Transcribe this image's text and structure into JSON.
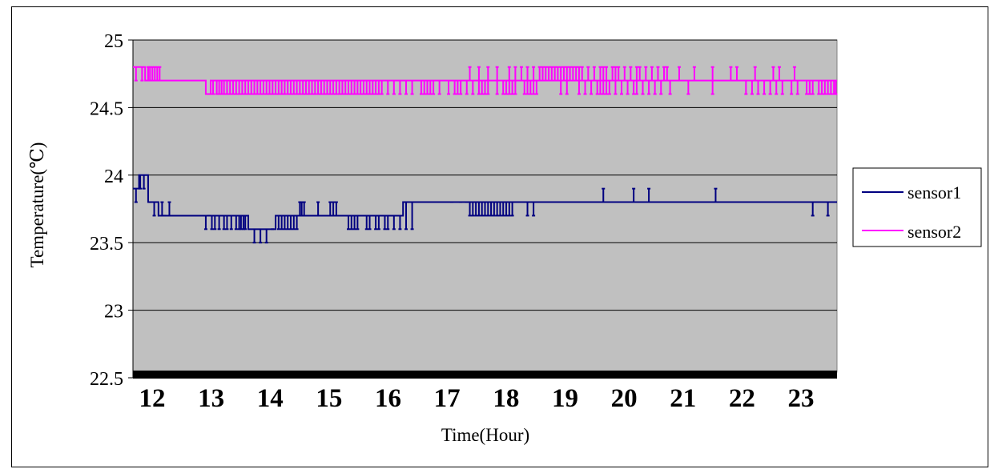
{
  "chart_data": {
    "type": "line",
    "title": "",
    "xlabel": "Time(Hour)",
    "ylabel": "Temperature(℃)",
    "ylim": [
      22.5,
      25
    ],
    "yticks": [
      "25",
      "24.5",
      "24",
      "23.5",
      "23",
      "22.5"
    ],
    "ytick_values": [
      25,
      24.5,
      24,
      23.5,
      23,
      22.5
    ],
    "xticks": [
      "12",
      "13",
      "14",
      "15",
      "16",
      "17",
      "18",
      "19",
      "20",
      "21",
      "22",
      "23"
    ],
    "xlim": [
      12,
      23.6
    ],
    "grid": "horizontal",
    "legend_position": "right",
    "plot_background": "#c0c0c0",
    "series": [
      {
        "name": "sensor1",
        "color": "#000080",
        "base": [
          [
            12.0,
            23.9
          ],
          [
            12.1,
            24.0
          ],
          [
            12.25,
            23.8
          ],
          [
            12.42,
            23.7
          ],
          [
            13.9,
            23.6
          ],
          [
            14.35,
            23.7
          ],
          [
            16.45,
            23.8
          ],
          [
            23.6,
            23.8
          ]
        ],
        "spikes": [
          [
            12.05,
            23.8
          ],
          [
            12.12,
            23.9
          ],
          [
            12.18,
            23.9
          ],
          [
            12.28,
            23.8
          ],
          [
            12.35,
            23.7
          ],
          [
            12.48,
            23.8
          ],
          [
            12.52,
            23.7
          ],
          [
            12.6,
            23.8
          ],
          [
            13.2,
            23.6
          ],
          [
            13.25,
            23.7
          ],
          [
            13.3,
            23.6
          ],
          [
            13.35,
            23.6
          ],
          [
            13.42,
            23.6
          ],
          [
            13.5,
            23.6
          ],
          [
            13.55,
            23.6
          ],
          [
            13.62,
            23.6
          ],
          [
            13.7,
            23.6
          ],
          [
            13.75,
            23.6
          ],
          [
            13.78,
            23.6
          ],
          [
            13.82,
            23.6
          ],
          [
            13.85,
            23.6
          ],
          [
            14.0,
            23.5
          ],
          [
            14.1,
            23.5
          ],
          [
            14.2,
            23.5
          ],
          [
            14.3,
            23.6
          ],
          [
            14.4,
            23.6
          ],
          [
            14.45,
            23.6
          ],
          [
            14.5,
            23.6
          ],
          [
            14.55,
            23.6
          ],
          [
            14.6,
            23.6
          ],
          [
            14.65,
            23.6
          ],
          [
            14.7,
            23.6
          ],
          [
            14.75,
            23.8
          ],
          [
            14.78,
            23.8
          ],
          [
            14.82,
            23.8
          ],
          [
            15.05,
            23.8
          ],
          [
            15.25,
            23.8
          ],
          [
            15.3,
            23.8
          ],
          [
            15.35,
            23.8
          ],
          [
            15.55,
            23.6
          ],
          [
            15.6,
            23.6
          ],
          [
            15.65,
            23.6
          ],
          [
            15.7,
            23.6
          ],
          [
            15.85,
            23.6
          ],
          [
            15.9,
            23.6
          ],
          [
            16.0,
            23.6
          ],
          [
            16.05,
            23.6
          ],
          [
            16.15,
            23.6
          ],
          [
            16.2,
            23.6
          ],
          [
            16.3,
            23.6
          ],
          [
            16.4,
            23.6
          ],
          [
            16.5,
            23.6
          ],
          [
            16.6,
            23.6
          ],
          [
            17.25,
            23.8
          ],
          [
            17.4,
            23.8
          ],
          [
            17.5,
            23.8
          ],
          [
            17.55,
            23.7
          ],
          [
            17.6,
            23.7
          ],
          [
            17.65,
            23.7
          ],
          [
            17.7,
            23.7
          ],
          [
            17.75,
            23.7
          ],
          [
            17.8,
            23.7
          ],
          [
            17.85,
            23.7
          ],
          [
            17.9,
            23.7
          ],
          [
            17.95,
            23.7
          ],
          [
            18.0,
            23.7
          ],
          [
            18.05,
            23.7
          ],
          [
            18.1,
            23.7
          ],
          [
            18.15,
            23.7
          ],
          [
            18.2,
            23.7
          ],
          [
            18.25,
            23.7
          ],
          [
            18.5,
            23.7
          ],
          [
            18.6,
            23.7
          ],
          [
            19.75,
            23.9
          ],
          [
            20.25,
            23.9
          ],
          [
            20.5,
            23.9
          ],
          [
            21.6,
            23.9
          ],
          [
            23.2,
            23.7
          ],
          [
            23.45,
            23.7
          ]
        ]
      },
      {
        "name": "sensor2",
        "color": "#ff00ff",
        "base": [
          [
            12.0,
            24.8
          ],
          [
            12.12,
            24.8
          ],
          [
            12.2,
            24.7
          ],
          [
            13.2,
            24.6
          ],
          [
            13.28,
            24.7
          ],
          [
            23.6,
            24.7
          ]
        ],
        "spikes": [
          [
            12.05,
            24.7
          ],
          [
            12.15,
            24.7
          ],
          [
            12.25,
            24.8
          ],
          [
            12.28,
            24.8
          ],
          [
            12.32,
            24.8
          ],
          [
            12.36,
            24.8
          ],
          [
            12.4,
            24.8
          ],
          [
            12.44,
            24.8
          ],
          [
            13.22,
            24.6
          ],
          [
            13.26,
            24.6
          ],
          [
            13.32,
            24.6
          ],
          [
            13.38,
            24.6
          ],
          [
            13.42,
            24.6
          ],
          [
            13.46,
            24.6
          ],
          [
            13.5,
            24.6
          ],
          [
            13.55,
            24.6
          ],
          [
            13.6,
            24.6
          ],
          [
            13.65,
            24.6
          ],
          [
            13.7,
            24.6
          ],
          [
            13.75,
            24.6
          ],
          [
            13.8,
            24.6
          ],
          [
            13.85,
            24.6
          ],
          [
            13.9,
            24.6
          ],
          [
            13.95,
            24.6
          ],
          [
            14.0,
            24.6
          ],
          [
            14.05,
            24.6
          ],
          [
            14.1,
            24.6
          ],
          [
            14.15,
            24.6
          ],
          [
            14.2,
            24.6
          ],
          [
            14.25,
            24.6
          ],
          [
            14.3,
            24.6
          ],
          [
            14.35,
            24.6
          ],
          [
            14.4,
            24.6
          ],
          [
            14.45,
            24.6
          ],
          [
            14.5,
            24.6
          ],
          [
            14.55,
            24.6
          ],
          [
            14.6,
            24.6
          ],
          [
            14.65,
            24.6
          ],
          [
            14.7,
            24.6
          ],
          [
            14.75,
            24.6
          ],
          [
            14.8,
            24.6
          ],
          [
            14.85,
            24.6
          ],
          [
            14.9,
            24.6
          ],
          [
            14.95,
            24.6
          ],
          [
            15.0,
            24.6
          ],
          [
            15.05,
            24.6
          ],
          [
            15.1,
            24.6
          ],
          [
            15.15,
            24.6
          ],
          [
            15.2,
            24.6
          ],
          [
            15.25,
            24.6
          ],
          [
            15.3,
            24.6
          ],
          [
            15.35,
            24.6
          ],
          [
            15.4,
            24.6
          ],
          [
            15.45,
            24.6
          ],
          [
            15.5,
            24.6
          ],
          [
            15.55,
            24.6
          ],
          [
            15.6,
            24.6
          ],
          [
            15.65,
            24.6
          ],
          [
            15.7,
            24.6
          ],
          [
            15.75,
            24.6
          ],
          [
            15.8,
            24.6
          ],
          [
            15.85,
            24.6
          ],
          [
            15.9,
            24.6
          ],
          [
            15.95,
            24.6
          ],
          [
            16.0,
            24.6
          ],
          [
            16.05,
            24.6
          ],
          [
            16.1,
            24.6
          ],
          [
            16.2,
            24.6
          ],
          [
            16.3,
            24.6
          ],
          [
            16.4,
            24.6
          ],
          [
            16.5,
            24.6
          ],
          [
            16.6,
            24.6
          ],
          [
            16.75,
            24.6
          ],
          [
            16.8,
            24.6
          ],
          [
            16.85,
            24.6
          ],
          [
            16.9,
            24.6
          ],
          [
            16.95,
            24.6
          ],
          [
            17.05,
            24.6
          ],
          [
            17.2,
            24.6
          ],
          [
            17.3,
            24.6
          ],
          [
            17.35,
            24.6
          ],
          [
            17.4,
            24.6
          ],
          [
            17.5,
            24.6
          ],
          [
            17.6,
            24.6
          ],
          [
            17.7,
            24.6
          ],
          [
            17.75,
            24.6
          ],
          [
            17.8,
            24.6
          ],
          [
            17.85,
            24.6
          ],
          [
            18.0,
            24.6
          ],
          [
            18.1,
            24.6
          ],
          [
            18.15,
            24.6
          ],
          [
            18.2,
            24.6
          ],
          [
            18.25,
            24.6
          ],
          [
            18.3,
            24.6
          ],
          [
            18.45,
            24.6
          ],
          [
            18.5,
            24.6
          ],
          [
            18.55,
            24.6
          ],
          [
            18.6,
            24.6
          ],
          [
            18.65,
            24.6
          ],
          [
            19.05,
            24.6
          ],
          [
            19.15,
            24.6
          ],
          [
            19.35,
            24.6
          ],
          [
            19.45,
            24.6
          ],
          [
            19.55,
            24.6
          ],
          [
            19.65,
            24.6
          ],
          [
            19.7,
            24.6
          ],
          [
            19.75,
            24.6
          ],
          [
            19.8,
            24.6
          ],
          [
            19.85,
            24.6
          ],
          [
            19.95,
            24.6
          ],
          [
            20.05,
            24.6
          ],
          [
            20.15,
            24.6
          ],
          [
            20.25,
            24.6
          ],
          [
            20.3,
            24.6
          ],
          [
            20.4,
            24.6
          ],
          [
            20.5,
            24.6
          ],
          [
            20.6,
            24.6
          ],
          [
            20.7,
            24.6
          ],
          [
            20.85,
            24.6
          ],
          [
            21.15,
            24.6
          ],
          [
            21.55,
            24.6
          ],
          [
            22.1,
            24.6
          ],
          [
            22.2,
            24.6
          ],
          [
            22.3,
            24.6
          ],
          [
            22.4,
            24.6
          ],
          [
            22.5,
            24.6
          ],
          [
            22.6,
            24.6
          ],
          [
            22.7,
            24.6
          ],
          [
            22.85,
            24.6
          ],
          [
            22.95,
            24.6
          ],
          [
            23.1,
            24.6
          ],
          [
            23.15,
            24.6
          ],
          [
            23.2,
            24.6
          ],
          [
            23.3,
            24.6
          ],
          [
            23.35,
            24.6
          ],
          [
            23.4,
            24.6
          ],
          [
            23.45,
            24.6
          ],
          [
            23.5,
            24.6
          ],
          [
            23.55,
            24.6
          ],
          [
            23.58,
            24.6
          ],
          [
            17.55,
            24.8
          ],
          [
            17.7,
            24.8
          ],
          [
            17.85,
            24.8
          ],
          [
            18.0,
            24.8
          ],
          [
            18.2,
            24.8
          ],
          [
            18.3,
            24.8
          ],
          [
            18.4,
            24.8
          ],
          [
            18.5,
            24.8
          ],
          [
            18.6,
            24.8
          ],
          [
            18.7,
            24.8
          ],
          [
            18.75,
            24.8
          ],
          [
            18.8,
            24.8
          ],
          [
            18.85,
            24.8
          ],
          [
            18.9,
            24.8
          ],
          [
            18.95,
            24.8
          ],
          [
            19.0,
            24.8
          ],
          [
            19.05,
            24.8
          ],
          [
            19.1,
            24.8
          ],
          [
            19.15,
            24.8
          ],
          [
            19.2,
            24.8
          ],
          [
            19.25,
            24.8
          ],
          [
            19.3,
            24.8
          ],
          [
            19.35,
            24.8
          ],
          [
            19.4,
            24.8
          ],
          [
            19.5,
            24.8
          ],
          [
            19.6,
            24.8
          ],
          [
            19.7,
            24.8
          ],
          [
            19.75,
            24.8
          ],
          [
            19.8,
            24.8
          ],
          [
            19.9,
            24.8
          ],
          [
            19.95,
            24.8
          ],
          [
            20.0,
            24.8
          ],
          [
            20.1,
            24.8
          ],
          [
            20.2,
            24.8
          ],
          [
            20.3,
            24.8
          ],
          [
            20.35,
            24.8
          ],
          [
            20.45,
            24.8
          ],
          [
            20.55,
            24.8
          ],
          [
            20.65,
            24.8
          ],
          [
            20.75,
            24.8
          ],
          [
            20.8,
            24.8
          ],
          [
            21.0,
            24.8
          ],
          [
            21.25,
            24.8
          ],
          [
            21.55,
            24.8
          ],
          [
            21.85,
            24.8
          ],
          [
            21.95,
            24.8
          ],
          [
            22.25,
            24.8
          ],
          [
            22.55,
            24.8
          ],
          [
            22.65,
            24.8
          ],
          [
            22.9,
            24.8
          ],
          [
            23.15,
            24.6
          ]
        ]
      }
    ]
  }
}
